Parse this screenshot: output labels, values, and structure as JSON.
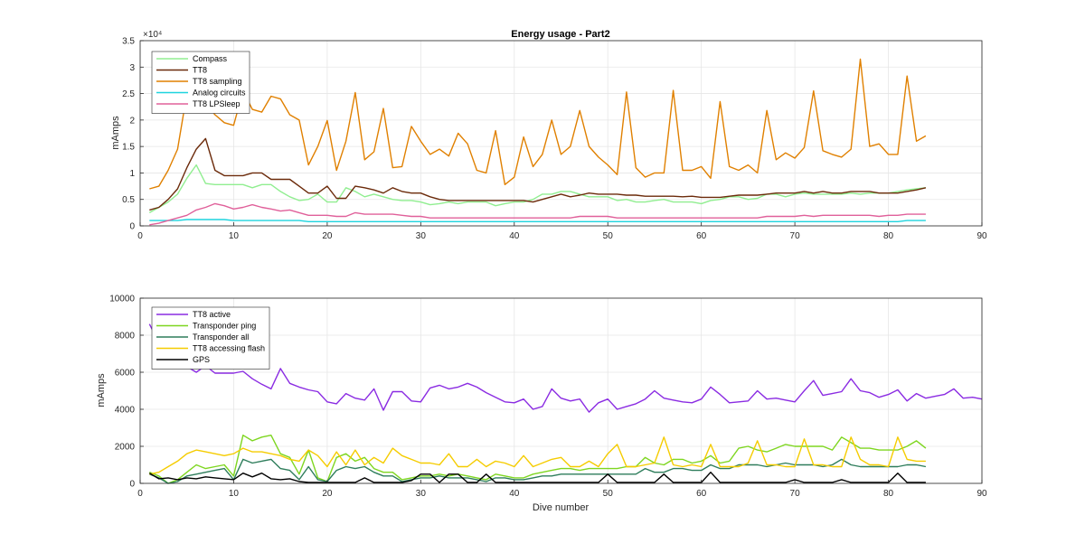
{
  "chart_data": [
    {
      "type": "line",
      "title": "Energy usage - Part2",
      "xlabel": "",
      "ylabel": "mAmps",
      "exponent_label": "×10⁴",
      "xlim": [
        0,
        90
      ],
      "ylim": [
        0,
        3.5
      ],
      "xticks": [
        "0",
        "10",
        "20",
        "30",
        "40",
        "50",
        "60",
        "70",
        "80",
        "90"
      ],
      "yticks": [
        "0",
        "0.5",
        "1",
        "1.5",
        "2",
        "2.5",
        "3",
        "3.5"
      ],
      "grid": true,
      "legend_position": "top-left",
      "series": [
        {
          "name": "Compass",
          "color": "#90ee90",
          "values": [
            0.25,
            0.35,
            0.45,
            0.6,
            0.9,
            1.15,
            0.8,
            0.78,
            0.78,
            0.78,
            0.78,
            0.72,
            0.78,
            0.78,
            0.65,
            0.55,
            0.48,
            0.5,
            0.6,
            0.45,
            0.45,
            0.72,
            0.65,
            0.55,
            0.6,
            0.55,
            0.5,
            0.48,
            0.48,
            0.45,
            0.4,
            0.42,
            0.45,
            0.42,
            0.45,
            0.45,
            0.45,
            0.38,
            0.42,
            0.45,
            0.45,
            0.5,
            0.6,
            0.6,
            0.65,
            0.65,
            0.6,
            0.55,
            0.55,
            0.55,
            0.48,
            0.5,
            0.45,
            0.45,
            0.48,
            0.5,
            0.45,
            0.45,
            0.45,
            0.42,
            0.48,
            0.5,
            0.55,
            0.55,
            0.5,
            0.52,
            0.6,
            0.6,
            0.55,
            0.6,
            0.62,
            0.6,
            0.6,
            0.6,
            0.6,
            0.62,
            0.6,
            0.62,
            0.62,
            0.62,
            0.65,
            0.68,
            0.7,
            0.72
          ]
        },
        {
          "name": "TT8",
          "color": "#6b2a0a",
          "values": [
            0.3,
            0.35,
            0.5,
            0.7,
            1.1,
            1.45,
            1.65,
            1.05,
            0.95,
            0.95,
            0.95,
            1.0,
            1.0,
            0.88,
            0.88,
            0.88,
            0.75,
            0.62,
            0.62,
            0.75,
            0.52,
            0.52,
            0.75,
            0.72,
            0.68,
            0.62,
            0.72,
            0.65,
            0.62,
            0.62,
            0.55,
            0.5,
            0.48,
            0.48,
            0.48,
            0.48,
            0.48,
            0.48,
            0.48,
            0.48,
            0.48,
            0.45,
            0.5,
            0.55,
            0.6,
            0.55,
            0.58,
            0.62,
            0.6,
            0.6,
            0.6,
            0.58,
            0.58,
            0.56,
            0.56,
            0.56,
            0.56,
            0.55,
            0.56,
            0.54,
            0.54,
            0.54,
            0.56,
            0.58,
            0.58,
            0.58,
            0.6,
            0.62,
            0.62,
            0.62,
            0.65,
            0.62,
            0.65,
            0.62,
            0.62,
            0.65,
            0.65,
            0.65,
            0.62,
            0.62,
            0.62,
            0.65,
            0.68,
            0.72
          ]
        },
        {
          "name": "TT8 sampling",
          "color": "#e08000",
          "values": [
            0.7,
            0.75,
            1.05,
            1.45,
            2.5,
            2.3,
            2.3,
            2.1,
            1.95,
            1.9,
            2.55,
            2.2,
            2.15,
            2.45,
            2.4,
            2.1,
            2.0,
            1.15,
            1.5,
            1.99,
            1.05,
            1.6,
            2.52,
            1.25,
            1.4,
            2.22,
            1.1,
            1.12,
            1.88,
            1.6,
            1.35,
            1.45,
            1.32,
            1.75,
            1.55,
            1.05,
            1.0,
            1.8,
            0.78,
            0.92,
            1.68,
            1.12,
            1.35,
            2.0,
            1.35,
            1.5,
            2.18,
            1.5,
            1.3,
            1.15,
            0.97,
            2.53,
            1.1,
            0.92,
            1.0,
            1.0,
            2.56,
            1.05,
            1.05,
            1.12,
            0.9,
            2.35,
            1.12,
            1.05,
            1.15,
            1.0,
            2.18,
            1.25,
            1.38,
            1.28,
            1.48,
            2.55,
            1.42,
            1.35,
            1.3,
            1.45,
            3.15,
            1.5,
            1.55,
            1.35,
            1.35,
            2.83,
            1.6,
            1.7
          ]
        },
        {
          "name": "Analog circuits",
          "color": "#1ed4de",
          "values": [
            0.1,
            0.1,
            0.1,
            0.1,
            0.12,
            0.12,
            0.12,
            0.12,
            0.12,
            0.1,
            0.1,
            0.1,
            0.1,
            0.1,
            0.1,
            0.1,
            0.1,
            0.08,
            0.08,
            0.08,
            0.08,
            0.08,
            0.08,
            0.08,
            0.08,
            0.08,
            0.08,
            0.08,
            0.08,
            0.08,
            0.08,
            0.08,
            0.08,
            0.08,
            0.08,
            0.08,
            0.08,
            0.08,
            0.08,
            0.08,
            0.08,
            0.08,
            0.08,
            0.08,
            0.08,
            0.08,
            0.08,
            0.08,
            0.08,
            0.08,
            0.08,
            0.08,
            0.08,
            0.08,
            0.08,
            0.08,
            0.08,
            0.08,
            0.08,
            0.08,
            0.08,
            0.08,
            0.08,
            0.08,
            0.08,
            0.08,
            0.08,
            0.08,
            0.08,
            0.08,
            0.08,
            0.08,
            0.08,
            0.08,
            0.08,
            0.08,
            0.08,
            0.08,
            0.08,
            0.08,
            0.08,
            0.1,
            0.1,
            0.1
          ]
        },
        {
          "name": "TT8 LPSleep",
          "color": "#e0609a",
          "values": [
            0.02,
            0.05,
            0.1,
            0.15,
            0.2,
            0.3,
            0.35,
            0.42,
            0.38,
            0.32,
            0.35,
            0.4,
            0.35,
            0.32,
            0.28,
            0.3,
            0.25,
            0.2,
            0.2,
            0.2,
            0.18,
            0.18,
            0.25,
            0.22,
            0.22,
            0.22,
            0.22,
            0.2,
            0.18,
            0.18,
            0.15,
            0.15,
            0.15,
            0.15,
            0.15,
            0.15,
            0.15,
            0.15,
            0.15,
            0.15,
            0.15,
            0.15,
            0.15,
            0.15,
            0.15,
            0.15,
            0.18,
            0.18,
            0.18,
            0.18,
            0.15,
            0.15,
            0.15,
            0.15,
            0.15,
            0.15,
            0.15,
            0.15,
            0.15,
            0.15,
            0.15,
            0.15,
            0.15,
            0.15,
            0.15,
            0.15,
            0.18,
            0.18,
            0.18,
            0.18,
            0.2,
            0.18,
            0.2,
            0.2,
            0.2,
            0.2,
            0.2,
            0.2,
            0.18,
            0.2,
            0.2,
            0.22,
            0.22,
            0.22
          ]
        }
      ]
    },
    {
      "type": "line",
      "title": "",
      "xlabel": "Dive number",
      "ylabel": "mAmps",
      "xlim": [
        0,
        90
      ],
      "ylim": [
        0,
        10000
      ],
      "xticks": [
        "0",
        "10",
        "20",
        "30",
        "40",
        "50",
        "60",
        "70",
        "80",
        "90"
      ],
      "yticks": [
        "0",
        "2000",
        "4000",
        "6000",
        "8000",
        "10000"
      ],
      "grid": true,
      "legend_position": "top-left",
      "series": [
        {
          "name": "TT8 active",
          "color": "#8a2be2",
          "values": [
            8600,
            7600,
            7000,
            6500,
            6300,
            6000,
            6350,
            5950,
            5950,
            5950,
            6050,
            5650,
            5350,
            5100,
            6200,
            5400,
            5200,
            5050,
            4950,
            4400,
            4300,
            4850,
            4600,
            4500,
            5100,
            3950,
            4950,
            4950,
            4450,
            4400,
            5150,
            5300,
            5100,
            5200,
            5400,
            5200,
            4900,
            4650,
            4400,
            4350,
            4550,
            4000,
            4150,
            5100,
            4600,
            4450,
            4550,
            3850,
            4350,
            4550,
            4000,
            4150,
            4300,
            4550,
            5000,
            4600,
            4500,
            4400,
            4350,
            4550,
            5200,
            4800,
            4350,
            4400,
            4450,
            5000,
            4550,
            4600,
            4500,
            4400,
            5000,
            5550,
            4750,
            4850,
            4950,
            5650,
            5000,
            4900,
            4650,
            4800,
            5050,
            4450,
            4850,
            4600,
            4700,
            4800,
            5100,
            4600,
            4650,
            4550
          ]
        },
        {
          "name": "Transponder ping",
          "color": "#7ed620",
          "values": [
            600,
            400,
            0,
            200,
            600,
            1000,
            800,
            900,
            1000,
            400,
            2600,
            2300,
            2500,
            2600,
            1600,
            1400,
            500,
            1800,
            300,
            100,
            1400,
            1600,
            1200,
            1400,
            800,
            600,
            600,
            200,
            300,
            400,
            400,
            500,
            400,
            500,
            400,
            300,
            200,
            500,
            400,
            300,
            300,
            500,
            600,
            700,
            800,
            800,
            700,
            800,
            800,
            800,
            800,
            900,
            900,
            1400,
            1100,
            1000,
            1300,
            1300,
            1100,
            1200,
            1500,
            1100,
            1200,
            1900,
            2000,
            1800,
            1700,
            1900,
            2100,
            2000,
            2000,
            2000,
            2000,
            1800,
            2500,
            2200,
            1900,
            1900,
            1800,
            1800,
            1800,
            2000,
            2300,
            1900
          ]
        },
        {
          "name": "Transponder all",
          "color": "#2e7d5b",
          "values": [
            500,
            300,
            0,
            100,
            400,
            500,
            600,
            700,
            800,
            200,
            1300,
            1100,
            1200,
            1300,
            800,
            700,
            200,
            900,
            200,
            100,
            700,
            900,
            800,
            900,
            600,
            400,
            400,
            100,
            200,
            300,
            300,
            400,
            300,
            300,
            300,
            200,
            100,
            300,
            300,
            200,
            200,
            300,
            400,
            400,
            500,
            500,
            500,
            500,
            500,
            500,
            500,
            500,
            500,
            800,
            600,
            600,
            800,
            800,
            700,
            700,
            1000,
            800,
            800,
            1000,
            1000,
            1000,
            900,
            1000,
            1100,
            1000,
            1000,
            1000,
            900,
            1000,
            1300,
            1000,
            900,
            900,
            900,
            900,
            900,
            1000,
            1000,
            900
          ]
        },
        {
          "name": "TT8 accessing flash",
          "color": "#f5cc00",
          "values": [
            500,
            600,
            900,
            1200,
            1600,
            1800,
            1700,
            1600,
            1500,
            1600,
            1900,
            1700,
            1700,
            1600,
            1500,
            1300,
            1200,
            1800,
            1500,
            900,
            1700,
            1000,
            1800,
            1000,
            1400,
            1100,
            1900,
            1500,
            1300,
            1100,
            1100,
            1000,
            1600,
            900,
            900,
            1300,
            900,
            1200,
            1100,
            900,
            1500,
            900,
            1100,
            1300,
            1400,
            900,
            900,
            1200,
            900,
            1600,
            2100,
            900,
            900,
            1000,
            1100,
            2500,
            1000,
            900,
            1000,
            900,
            2100,
            900,
            900,
            900,
            1100,
            2300,
            1000,
            1000,
            900,
            900,
            2400,
            1000,
            1000,
            900,
            900,
            2500,
            1300,
            1000,
            1000,
            900,
            2500,
            1300,
            1200,
            1200
          ]
        },
        {
          "name": "GPS",
          "color": "#000000",
          "values": [
            550,
            250,
            300,
            200,
            300,
            250,
            350,
            300,
            250,
            200,
            550,
            350,
            550,
            250,
            200,
            250,
            100,
            50,
            50,
            50,
            50,
            50,
            50,
            300,
            50,
            50,
            50,
            50,
            150,
            500,
            500,
            50,
            500,
            500,
            50,
            50,
            500,
            50,
            50,
            50,
            50,
            50,
            50,
            50,
            50,
            50,
            50,
            50,
            50,
            500,
            50,
            50,
            50,
            50,
            50,
            500,
            50,
            50,
            50,
            50,
            600,
            50,
            50,
            50,
            50,
            50,
            50,
            50,
            50,
            200,
            50,
            50,
            50,
            50,
            200,
            50,
            50,
            50,
            50,
            50,
            550,
            50,
            50,
            50
          ]
        }
      ]
    }
  ]
}
